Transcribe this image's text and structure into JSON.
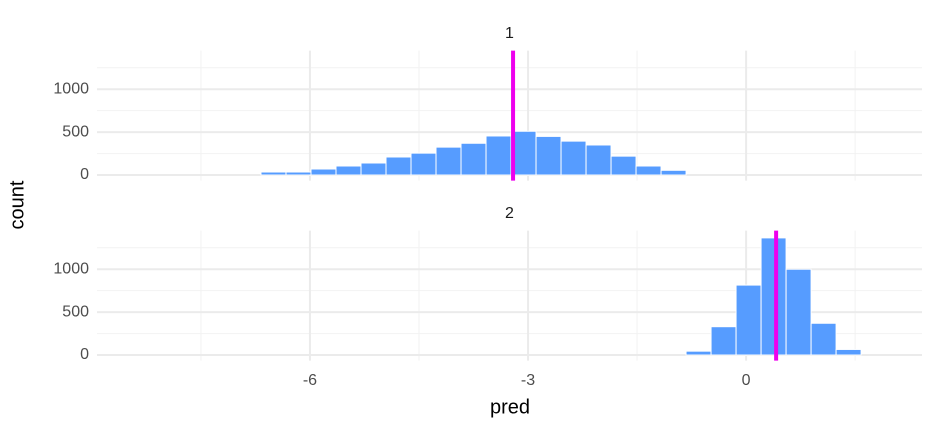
{
  "chart_data": {
    "type": "histogram",
    "xlabel": "pred",
    "ylabel": "count",
    "xlim": [
      -8.93,
      2.42
    ],
    "xticks": [
      -6,
      -3,
      0
    ],
    "minor_xticks": [
      -7.5,
      -4.5,
      -1.5,
      1.5
    ],
    "ylim": [
      -65,
      1450
    ],
    "yticks": [
      0,
      500,
      1000
    ],
    "minor_yticks": [
      250,
      750,
      1250
    ],
    "color": "#569cff",
    "vline_color": "#ee00ee",
    "grid": true,
    "facets": [
      {
        "title": "1",
        "bins": [
          -6.674,
          -6.33,
          -5.986,
          -5.642,
          -5.298,
          -4.954,
          -4.61,
          -4.266,
          -3.922,
          -3.578,
          -3.234,
          -2.89,
          -2.546,
          -2.202,
          -1.858,
          -1.514,
          -1.17,
          -0.826
        ],
        "counts": [
          35,
          35,
          70,
          105,
          140,
          210,
          255,
          325,
          370,
          455,
          510,
          450,
          395,
          350,
          220,
          105,
          55
        ],
        "vline": -3.206
      },
      {
        "title": "2",
        "bins": [
          -0.826,
          -0.482,
          -0.138,
          0.206,
          0.55,
          0.894,
          1.238,
          1.582
        ],
        "counts": [
          45,
          330,
          815,
          1365,
          1000,
          370,
          65
        ],
        "vline": 0.413
      }
    ]
  }
}
